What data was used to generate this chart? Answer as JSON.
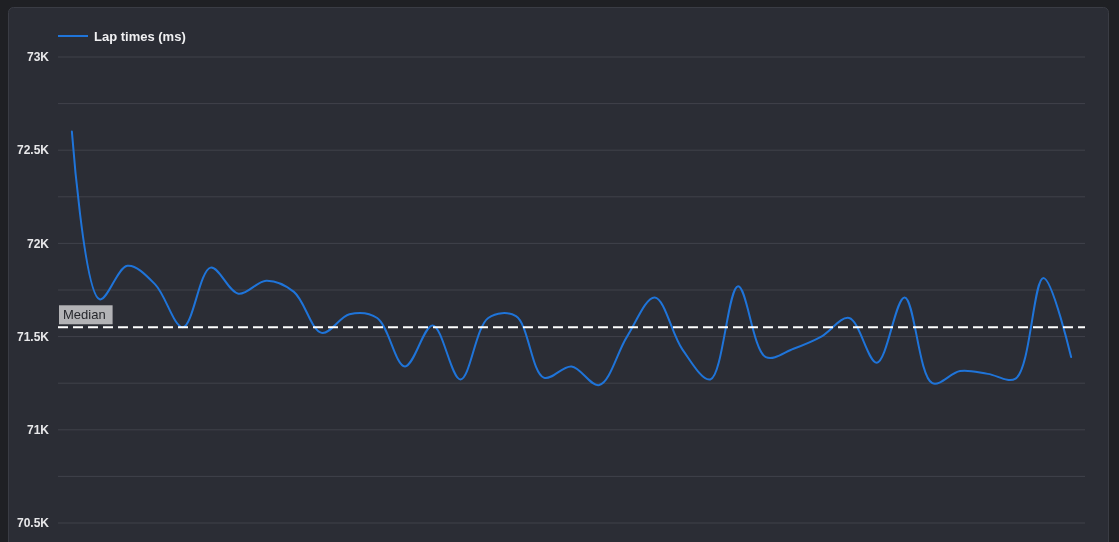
{
  "chart_data": {
    "type": "line",
    "categories": [
      null,
      null,
      null,
      null,
      null,
      null,
      null,
      null,
      null,
      null,
      null,
      null,
      null,
      null,
      null,
      null,
      null,
      null,
      null,
      null,
      null,
      null,
      null,
      null,
      null,
      null,
      null,
      null,
      null,
      null,
      null,
      null,
      null,
      null,
      null,
      null,
      null
    ],
    "series": [
      {
        "name": "Lap times (ms)",
        "color": "#1f74d9",
        "values": [
          72600,
          71700,
          71880,
          71780,
          71550,
          71870,
          71730,
          71800,
          71740,
          71520,
          71620,
          71600,
          71340,
          71560,
          71270,
          71600,
          71610,
          71280,
          71340,
          71240,
          71500,
          71710,
          71430,
          71270,
          71770,
          71390,
          71435,
          71500,
          71600,
          71360,
          71710,
          71250,
          71315,
          71300,
          71275,
          71815,
          71390
        ]
      }
    ],
    "ylim": [
      70500,
      73000
    ],
    "yticks": [
      {
        "value": 70500,
        "label": "70.5K"
      },
      {
        "value": 70750,
        "label": null
      },
      {
        "value": 71000,
        "label": "71K"
      },
      {
        "value": 71250,
        "label": null
      },
      {
        "value": 71500,
        "label": "71.5K"
      },
      {
        "value": 71750,
        "label": null
      },
      {
        "value": 72000,
        "label": "72K"
      },
      {
        "value": 72250,
        "label": null
      },
      {
        "value": 72500,
        "label": "72.5K"
      },
      {
        "value": 72750,
        "label": null
      },
      {
        "value": 73000,
        "label": "73K"
      }
    ],
    "grid": "y",
    "legend": "top left",
    "ref_lines": [
      {
        "axis": "y",
        "value": 71550,
        "label": "Median",
        "color": "#ffffff",
        "line_style": "dashed"
      }
    ]
  }
}
